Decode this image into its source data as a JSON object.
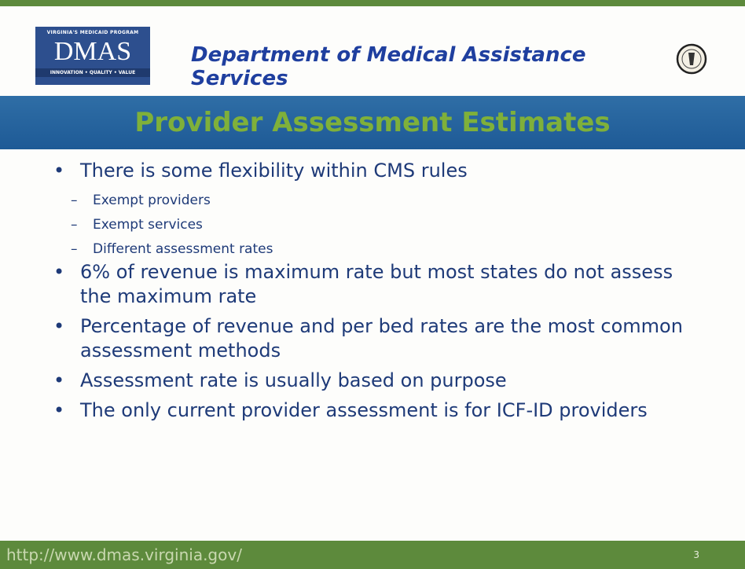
{
  "header": {
    "logo": {
      "top": "VIRGINIA'S MEDICAID PROGRAM",
      "name": "DMAS",
      "tagline": "INNOVATION • QUALITY • VALUE"
    },
    "title": "Department of Medical Assistance Services"
  },
  "banner": {
    "title": "Provider Assessment Estimates"
  },
  "bullets": [
    {
      "text": "There is some flexibility within CMS rules",
      "subitems": [
        "Exempt providers",
        "Exempt services",
        "Different assessment rates"
      ]
    },
    {
      "text": "6% of revenue is maximum rate but most states do not assess the maximum rate"
    },
    {
      "text": "Percentage of revenue and per bed rates are the most common assessment methods"
    },
    {
      "text": "Assessment rate is usually based on purpose"
    },
    {
      "text": "The only current provider assessment is for ICF-ID providers"
    }
  ],
  "footer": {
    "url": "http://www.dmas.virginia.gov/",
    "page": "3"
  }
}
